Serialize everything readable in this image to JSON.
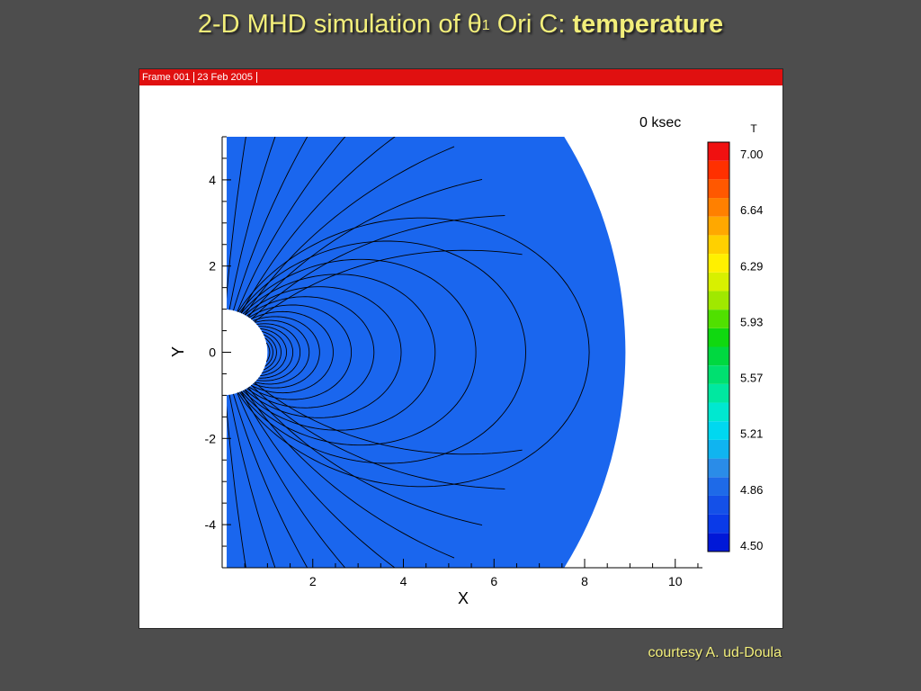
{
  "title": {
    "prefix": "2-D MHD simulation of ",
    "theta": "θ",
    "superscript": "1",
    "object": " Ori C: ",
    "emphasis": "temperature"
  },
  "frame_header": {
    "frame": "Frame 001",
    "date": "23 Feb 2005"
  },
  "credit": "courtesy A. ud-Doula",
  "colors": {
    "background": "#4d4d4d",
    "title": "#f2ee7a",
    "header": "#e01010",
    "field": "#1a66ee"
  },
  "chart_data": {
    "type": "heatmap",
    "annotation": "0 ksec",
    "xlabel": "X",
    "ylabel": "Y",
    "xlim": [
      0,
      10.6
    ],
    "ylim": [
      -5,
      5
    ],
    "x_ticks": [
      2,
      4,
      6,
      8,
      10
    ],
    "y_ticks": [
      4,
      2,
      0,
      -2,
      -4
    ],
    "stellar_core_radius": 1,
    "domain_outer_boundary_x_at_y0": 8.9,
    "field_value": 4.82,
    "colorbar": {
      "title": "T",
      "min": 4.5,
      "max": 7.0,
      "tick_labels": [
        "7.00",
        "6.64",
        "6.29",
        "5.93",
        "5.57",
        "5.21",
        "4.86",
        "4.50"
      ],
      "colors": [
        "#0018d8",
        "#0a3ae8",
        "#1450e8",
        "#1e6ae8",
        "#2a8ce8",
        "#10b4f0",
        "#00d8f0",
        "#00e8d0",
        "#00e8a0",
        "#00e070",
        "#00d840",
        "#10d810",
        "#50e000",
        "#a0e800",
        "#d8f000",
        "#fff000",
        "#ffd000",
        "#ffa800",
        "#ff8000",
        "#ff5800",
        "#ff3000",
        "#f01010"
      ]
    },
    "field_line_loop_apex_x": [
      1.05,
      1.12,
      1.2,
      1.3,
      1.42,
      1.56,
      1.72,
      1.92,
      2.15,
      2.45,
      2.85,
      3.35,
      3.95,
      4.7,
      5.6,
      6.7,
      8.1
    ],
    "open_field_lines_count": 9
  }
}
